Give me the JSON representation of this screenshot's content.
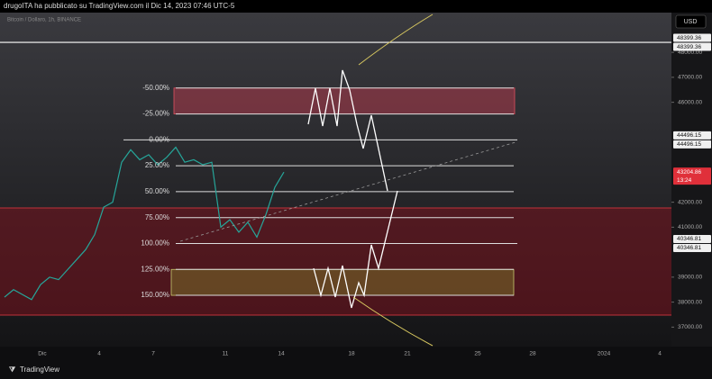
{
  "chart_data": {
    "type": "line",
    "header": "drugoITA ha pubblicato su TradingView.com il Dic 14, 2023 07:46 UTC-5",
    "symbol": "Bitcoin / Dollaro, 1h, BINANCE",
    "currency": "USD",
    "footer": "TradingView",
    "color": "#26a69a",
    "values": [
      38200,
      38500,
      38300,
      38100,
      38700,
      39000,
      38900,
      39300,
      39700,
      40100,
      40700,
      41800,
      42000,
      43600,
      44100,
      43700,
      43900,
      43500,
      43800,
      44200,
      43600,
      43700,
      43500,
      43600,
      41000,
      41300,
      40800,
      41200,
      40600,
      41500,
      42600,
      43204.86
    ],
    "x_labels": [
      "Dic",
      "4",
      "7",
      "11",
      "14",
      "18",
      "21",
      "25",
      "28",
      "2024",
      "4"
    ],
    "ylim": [
      36220,
      49590
    ],
    "yticks": [
      {
        "value": 37000,
        "label": "37000.00"
      },
      {
        "value": 38000,
        "label": "38000.00"
      },
      {
        "value": 39000,
        "label": "39000.00"
      },
      {
        "value": 41000,
        "label": "41000.00"
      },
      {
        "value": 42000,
        "label": "42000.00"
      },
      {
        "value": 46000,
        "label": "46000.00"
      },
      {
        "value": 47000,
        "label": "47000.00"
      },
      {
        "value": 48000,
        "label": "48000.00"
      }
    ],
    "price_labels": [
      48399.36,
      48399.36,
      44496.15,
      44496.15,
      40346.81,
      40346.81
    ],
    "last_price": 43204.86,
    "countdown": "13:24",
    "fib_levels": [
      {
        "value": -50,
        "label": "-50.00%"
      },
      {
        "value": -25,
        "label": "-25.00%"
      },
      {
        "value": 0,
        "label": "0.00%"
      },
      {
        "value": 25,
        "label": "25.00%"
      },
      {
        "value": 50,
        "label": "50.00%"
      },
      {
        "value": 75,
        "label": "75.00%"
      },
      {
        "value": 100,
        "label": "100.00%"
      },
      {
        "value": 125,
        "label": "125.00%"
      },
      {
        "value": 150,
        "label": "150.00%"
      }
    ]
  }
}
